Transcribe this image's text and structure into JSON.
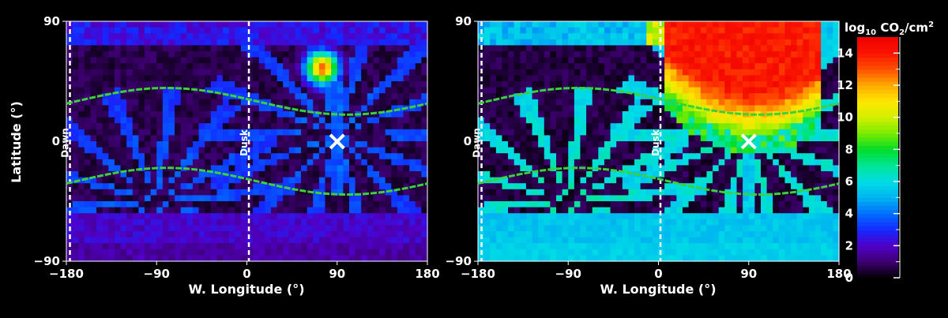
{
  "chart_data": [
    {
      "type": "heatmap",
      "xlabel": "W. Longitude (°)",
      "ylabel": "Latitude (°)",
      "xlim": [
        -180,
        180
      ],
      "ylim": [
        -90,
        90
      ],
      "x_ticks": [
        "−180",
        "−90",
        "0",
        "90",
        "180"
      ],
      "y_ticks": [
        "90",
        "0",
        "−90"
      ],
      "terminators": [
        {
          "label": "Dawn",
          "lon": -178
        },
        {
          "label": "Dusk",
          "lon": 2
        }
      ],
      "band_curves": {
        "center_lat": [
          30,
          -30
        ],
        "amplitude": 10,
        "peak_lon": -80
      },
      "marker": {
        "symbol": "×",
        "lon": 90,
        "lat": 0
      },
      "blob": {
        "lon": 75,
        "lat": 55,
        "peak_log10": 13,
        "radius": 20
      },
      "background_log10": 2.5
    },
    {
      "type": "heatmap",
      "xlabel": "W. Longitude (°)",
      "xlim": [
        -180,
        180
      ],
      "ylim": [
        -90,
        90
      ],
      "x_ticks": [
        "−180",
        "−90",
        "0",
        "90",
        "180"
      ],
      "y_ticks": [
        "90",
        "0",
        "−90"
      ],
      "terminators": [
        {
          "label": "Dawn",
          "lon": -178
        },
        {
          "label": "Dusk",
          "lon": 2
        }
      ],
      "band_curves": {
        "center_lat": [
          30,
          -30
        ],
        "amplitude": 10,
        "peak_lon": -80
      },
      "marker": {
        "symbol": "×",
        "lon": 90,
        "lat": 0
      },
      "plume": {
        "lon_range": [
          5,
          160
        ],
        "lat_top": 90,
        "lat_bottom": 5,
        "peak_log10": 14
      },
      "background_log10": 5
    }
  ],
  "colorbar": {
    "title_main": "log",
    "title_sub": "10",
    "title_species": " CO",
    "title_species_sub": "2",
    "title_unit": "/cm",
    "title_unit_sup": "2",
    "range": [
      0,
      15
    ],
    "ticks": [
      "0",
      "2",
      "4",
      "6",
      "8",
      "10",
      "12",
      "14"
    ]
  }
}
